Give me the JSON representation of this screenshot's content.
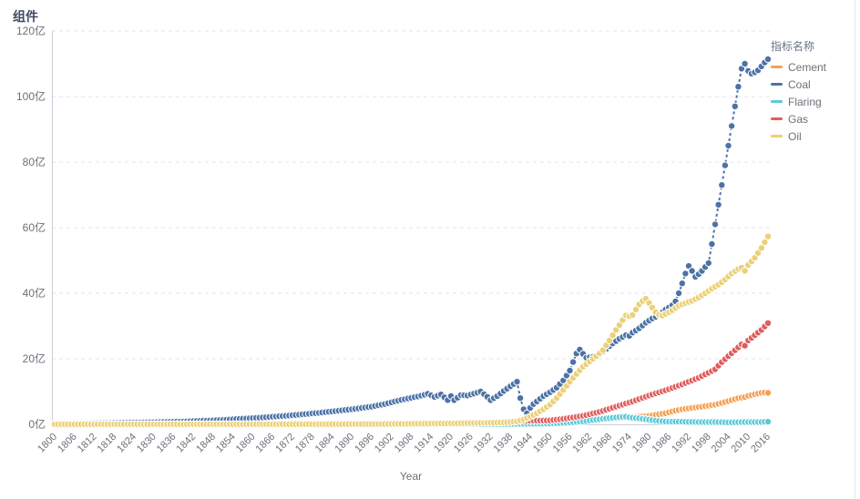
{
  "title": "组件",
  "legend": {
    "title": "指标名称"
  },
  "x_axis": {
    "name": "Year",
    "tick_years": [
      1800,
      1806,
      1812,
      1818,
      1824,
      1830,
      1836,
      1842,
      1848,
      1854,
      1860,
      1866,
      1872,
      1878,
      1884,
      1890,
      1896,
      1902,
      1908,
      1914,
      1920,
      1926,
      1932,
      1938,
      1944,
      1950,
      1956,
      1962,
      1968,
      1974,
      1980,
      1986,
      1992,
      1998,
      2004,
      2010,
      2016
    ]
  },
  "y_axis": {
    "unit": "亿",
    "ticks": [
      {
        "value": 0,
        "label": "0亿"
      },
      {
        "value": 20,
        "label": "20亿"
      },
      {
        "value": 40,
        "label": "40亿"
      },
      {
        "value": 60,
        "label": "60亿"
      },
      {
        "value": 80,
        "label": "80亿"
      },
      {
        "value": 100,
        "label": "100亿"
      },
      {
        "value": 120,
        "label": "120亿"
      }
    ]
  },
  "chart_data": {
    "type": "line",
    "title": "组件",
    "xlabel": "Year",
    "ylabel": "",
    "x_range": [
      1800,
      2016
    ],
    "ylim": [
      0,
      120
    ],
    "unit": "亿",
    "grid": "horizontal dashed",
    "legend_position": "right",
    "legend_title": "指标名称",
    "marker": "circle",
    "line_style": "dashed",
    "series": [
      {
        "name": "Cement",
        "color": "#F3A052",
        "anchors": [
          [
            1800,
            0.01
          ],
          [
            1850,
            0.02
          ],
          [
            1880,
            0.03
          ],
          [
            1900,
            0.05
          ],
          [
            1910,
            0.1
          ],
          [
            1920,
            0.15
          ],
          [
            1930,
            0.3
          ],
          [
            1940,
            0.4
          ],
          [
            1945,
            0.45
          ],
          [
            1950,
            0.6
          ],
          [
            1955,
            0.9
          ],
          [
            1960,
            1.2
          ],
          [
            1965,
            1.5
          ],
          [
            1970,
            1.9
          ],
          [
            1975,
            2.2
          ],
          [
            1980,
            2.6
          ],
          [
            1985,
            3.4
          ],
          [
            1988,
            4.2
          ],
          [
            1990,
            4.6
          ],
          [
            1993,
            5.0
          ],
          [
            1996,
            5.4
          ],
          [
            2000,
            6.0
          ],
          [
            2003,
            6.8
          ],
          [
            2005,
            7.4
          ],
          [
            2007,
            8.0
          ],
          [
            2009,
            8.3
          ],
          [
            2010,
            8.7
          ],
          [
            2012,
            9.2
          ],
          [
            2014,
            9.6
          ],
          [
            2015,
            9.7
          ],
          [
            2016,
            9.6
          ]
        ]
      },
      {
        "name": "Coal",
        "color": "#4C72A6",
        "anchors": [
          [
            1800,
            0.25
          ],
          [
            1810,
            0.35
          ],
          [
            1820,
            0.5
          ],
          [
            1830,
            0.65
          ],
          [
            1840,
            0.9
          ],
          [
            1850,
            1.3
          ],
          [
            1860,
            1.9
          ],
          [
            1870,
            2.6
          ],
          [
            1880,
            3.5
          ],
          [
            1890,
            4.6
          ],
          [
            1896,
            5.4
          ],
          [
            1900,
            6.2
          ],
          [
            1903,
            7.0
          ],
          [
            1906,
            7.7
          ],
          [
            1910,
            8.5
          ],
          [
            1913,
            9.3
          ],
          [
            1915,
            8.4
          ],
          [
            1917,
            9.1
          ],
          [
            1919,
            7.4
          ],
          [
            1920,
            8.6
          ],
          [
            1921,
            7.4
          ],
          [
            1923,
            8.9
          ],
          [
            1925,
            8.8
          ],
          [
            1927,
            9.4
          ],
          [
            1929,
            10.0
          ],
          [
            1931,
            8.4
          ],
          [
            1932,
            7.4
          ],
          [
            1934,
            8.6
          ],
          [
            1936,
            10.2
          ],
          [
            1938,
            11.6
          ],
          [
            1940,
            13.0
          ],
          [
            1941,
            8.0
          ],
          [
            1942,
            4.6
          ],
          [
            1943,
            3.4
          ],
          [
            1944,
            5.0
          ],
          [
            1945,
            6.2
          ],
          [
            1946,
            7.0
          ],
          [
            1948,
            8.6
          ],
          [
            1950,
            9.8
          ],
          [
            1952,
            11.2
          ],
          [
            1954,
            13.4
          ],
          [
            1956,
            16.4
          ],
          [
            1957,
            19.0
          ],
          [
            1958,
            21.6
          ],
          [
            1959,
            22.8
          ],
          [
            1960,
            21.5
          ],
          [
            1961,
            20.3
          ],
          [
            1963,
            20.6
          ],
          [
            1965,
            21.4
          ],
          [
            1967,
            23.0
          ],
          [
            1969,
            24.7
          ],
          [
            1971,
            26.1
          ],
          [
            1973,
            27.2
          ],
          [
            1974,
            27.0
          ],
          [
            1975,
            28.0
          ],
          [
            1977,
            29.3
          ],
          [
            1979,
            31.0
          ],
          [
            1981,
            32.3
          ],
          [
            1983,
            33.3
          ],
          [
            1985,
            35.0
          ],
          [
            1987,
            36.3
          ],
          [
            1988,
            37.5
          ],
          [
            1989,
            40.0
          ],
          [
            1990,
            43.0
          ],
          [
            1991,
            46.0
          ],
          [
            1992,
            48.3
          ],
          [
            1993,
            46.8
          ],
          [
            1994,
            45.0
          ],
          [
            1995,
            45.8
          ],
          [
            1996,
            46.8
          ],
          [
            1997,
            48.0
          ],
          [
            1998,
            49.2
          ],
          [
            1999,
            55.0
          ],
          [
            2000,
            61.0
          ],
          [
            2001,
            67.0
          ],
          [
            2002,
            73.0
          ],
          [
            2003,
            79.0
          ],
          [
            2004,
            85.0
          ],
          [
            2005,
            91.0
          ],
          [
            2006,
            97.0
          ],
          [
            2007,
            103.0
          ],
          [
            2008,
            108.5
          ],
          [
            2009,
            110.0
          ],
          [
            2010,
            107.8
          ],
          [
            2011,
            107.0
          ],
          [
            2012,
            107.4
          ],
          [
            2013,
            108.0
          ],
          [
            2014,
            109.2
          ],
          [
            2015,
            110.4
          ],
          [
            2016,
            111.4
          ]
        ]
      },
      {
        "name": "Flaring",
        "color": "#5BC9D8",
        "anchors": [
          [
            1800,
            0.0
          ],
          [
            1900,
            0.02
          ],
          [
            1930,
            0.05
          ],
          [
            1940,
            0.1
          ],
          [
            1950,
            0.25
          ],
          [
            1955,
            0.5
          ],
          [
            1960,
            0.9
          ],
          [
            1963,
            1.3
          ],
          [
            1966,
            1.7
          ],
          [
            1969,
            2.0
          ],
          [
            1971,
            2.2
          ],
          [
            1973,
            2.3
          ],
          [
            1975,
            2.0
          ],
          [
            1977,
            1.8
          ],
          [
            1980,
            1.4
          ],
          [
            1982,
            1.1
          ],
          [
            1986,
            0.8
          ],
          [
            1990,
            0.8
          ],
          [
            1995,
            0.7
          ],
          [
            2000,
            0.7
          ],
          [
            2005,
            0.6
          ],
          [
            2008,
            0.7
          ],
          [
            2010,
            0.7
          ],
          [
            2013,
            0.7
          ],
          [
            2016,
            0.8
          ]
        ]
      },
      {
        "name": "Gas",
        "color": "#DE5D5D",
        "anchors": [
          [
            1800,
            0.0
          ],
          [
            1880,
            0.02
          ],
          [
            1900,
            0.1
          ],
          [
            1910,
            0.2
          ],
          [
            1920,
            0.35
          ],
          [
            1930,
            0.55
          ],
          [
            1940,
            1.0
          ],
          [
            1945,
            1.1
          ],
          [
            1950,
            1.2
          ],
          [
            1955,
            1.8
          ],
          [
            1960,
            2.6
          ],
          [
            1965,
            3.8
          ],
          [
            1970,
            5.4
          ],
          [
            1975,
            7.0
          ],
          [
            1980,
            8.8
          ],
          [
            1985,
            10.4
          ],
          [
            1990,
            12.2
          ],
          [
            1995,
            14.2
          ],
          [
            2000,
            16.8
          ],
          [
            2002,
            19.0
          ],
          [
            2004,
            20.8
          ],
          [
            2006,
            22.6
          ],
          [
            2008,
            24.4
          ],
          [
            2009,
            24.0
          ],
          [
            2010,
            25.6
          ],
          [
            2012,
            27.2
          ],
          [
            2014,
            28.8
          ],
          [
            2016,
            30.9
          ]
        ]
      },
      {
        "name": "Oil",
        "color": "#EBD078",
        "anchors": [
          [
            1800,
            0.01
          ],
          [
            1880,
            0.05
          ],
          [
            1900,
            0.1
          ],
          [
            1910,
            0.2
          ],
          [
            1920,
            0.3
          ],
          [
            1930,
            0.45
          ],
          [
            1935,
            0.55
          ],
          [
            1938,
            0.7
          ],
          [
            1940,
            0.9
          ],
          [
            1942,
            1.5
          ],
          [
            1944,
            2.4
          ],
          [
            1946,
            3.4
          ],
          [
            1948,
            4.6
          ],
          [
            1950,
            6.0
          ],
          [
            1952,
            8.0
          ],
          [
            1954,
            10.5
          ],
          [
            1956,
            13.0
          ],
          [
            1958,
            15.4
          ],
          [
            1960,
            17.6
          ],
          [
            1962,
            19.2
          ],
          [
            1964,
            20.8
          ],
          [
            1966,
            22.6
          ],
          [
            1968,
            25.6
          ],
          [
            1970,
            28.8
          ],
          [
            1972,
            31.8
          ],
          [
            1973,
            33.2
          ],
          [
            1974,
            33.0
          ],
          [
            1975,
            33.4
          ],
          [
            1976,
            35.0
          ],
          [
            1977,
            36.6
          ],
          [
            1978,
            37.6
          ],
          [
            1979,
            38.3
          ],
          [
            1980,
            37.0
          ],
          [
            1981,
            35.6
          ],
          [
            1982,
            34.2
          ],
          [
            1983,
            33.4
          ],
          [
            1984,
            33.2
          ],
          [
            1985,
            33.7
          ],
          [
            1987,
            34.8
          ],
          [
            1989,
            36.2
          ],
          [
            1991,
            37.0
          ],
          [
            1993,
            37.7
          ],
          [
            1995,
            38.7
          ],
          [
            1997,
            40.0
          ],
          [
            1999,
            41.4
          ],
          [
            2001,
            42.6
          ],
          [
            2003,
            44.2
          ],
          [
            2005,
            46.0
          ],
          [
            2007,
            47.4
          ],
          [
            2008,
            47.8
          ],
          [
            2009,
            46.8
          ],
          [
            2010,
            48.6
          ],
          [
            2012,
            50.8
          ],
          [
            2014,
            53.8
          ],
          [
            2016,
            57.3
          ]
        ]
      }
    ]
  },
  "style": {
    "grid_color": "#E2E6EC",
    "axis_line_color": "#C9CFD8",
    "tick_label_color": "#6E7079",
    "title_color": "#3D4A63",
    "legend_title_color": "#697386"
  }
}
